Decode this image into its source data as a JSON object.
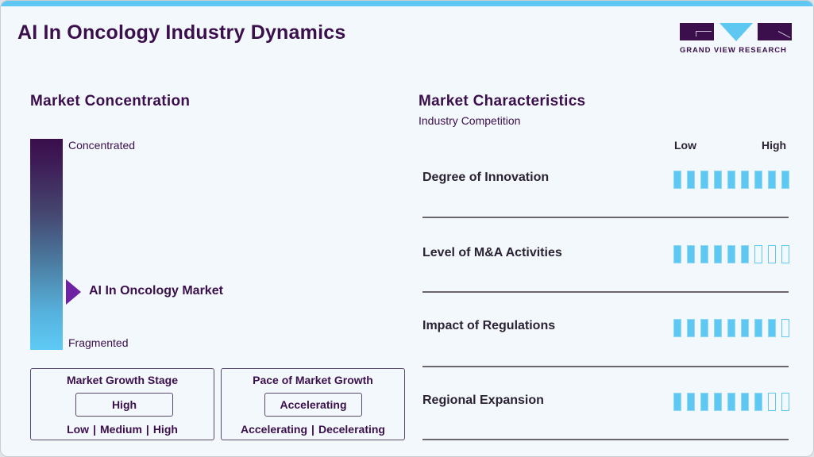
{
  "header": {
    "title": "AI In Oncology Industry Dynamics",
    "logo_text": "GRAND VIEW RESEARCH"
  },
  "colors": {
    "brand_purple": "#3a0f4b",
    "accent_blue": "#5ec8f2",
    "marker_purple": "#6e23a5",
    "background": "#f3f8fc"
  },
  "market_concentration": {
    "title": "Market Concentration",
    "top_label": "Concentrated",
    "bottom_label": "Fragmented",
    "marker_label": "AI In Oncology Market"
  },
  "growth_stage": {
    "title": "Market Growth Stage",
    "value": "High",
    "options": [
      "Low",
      "Medium",
      "High"
    ]
  },
  "growth_pace": {
    "title": "Pace of Market Growth",
    "value": "Accelerating",
    "options": [
      "Accelerating",
      "Decelerating"
    ]
  },
  "market_characteristics": {
    "title": "Market Characteristics",
    "subtitle": "Industry Competition",
    "scale_low": "Low",
    "scale_high": "High",
    "max_level": 9,
    "rows": [
      {
        "label": "Degree of Innovation",
        "level": 9
      },
      {
        "label": "Level of M&A Activities",
        "level": 6
      },
      {
        "label": "Impact of Regulations",
        "level": 8
      },
      {
        "label": "Regional Expansion",
        "level": 7
      }
    ]
  }
}
